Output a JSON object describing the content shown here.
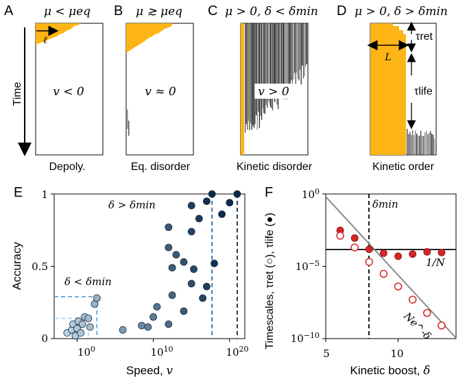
{
  "panel_letters": [
    "A",
    "B",
    "C",
    "D",
    "E",
    "F"
  ],
  "top_panels": [
    {
      "title": "μ < μeq",
      "center": "v < 0",
      "caption": "Depoly."
    },
    {
      "title": "μ ≳ μeq",
      "center": "v ≈ 0",
      "caption": "Eq. disorder"
    },
    {
      "title": "μ > 0, δ < δmin",
      "center": "v > 0",
      "caption": "Kinetic disorder"
    },
    {
      "title": "μ > 0, δ > δmin",
      "center": "",
      "caption": "Kinetic order"
    }
  ],
  "time_axis_label": "Time",
  "annotations": {
    "ell": "ℓ",
    "L": "L",
    "tau_ret": "τret",
    "tau_life": "τlife"
  },
  "colors": {
    "orange": "#FDB515",
    "dark_blue": "#0d2a47",
    "light_blue": "#b9dcf3",
    "red": "#d62728"
  },
  "chart_data": [
    {
      "type": "scatter",
      "title": "",
      "xlabel": "Speed, v",
      "ylabel": "Accuracy",
      "xscale": "log",
      "xlim": [
        0.001,
        1e+22
      ],
      "ylim": [
        0,
        1
      ],
      "xticks": [
        "10^0",
        "10^10",
        "10^20"
      ],
      "yticks": [
        "0",
        "0.5",
        "1"
      ],
      "annotations": [
        "δ > δmin",
        "δ < δmin"
      ],
      "points": [
        {
          "x": 0.05,
          "y": 0.04
        },
        {
          "x": 0.2,
          "y": 0.06
        },
        {
          "x": 0.3,
          "y": 0.1
        },
        {
          "x": 0.6,
          "y": 0.02
        },
        {
          "x": 1,
          "y": 0.07
        },
        {
          "x": 1.5,
          "y": 0.12
        },
        {
          "x": 3,
          "y": 0.04
        },
        {
          "x": 5,
          "y": 0.1
        },
        {
          "x": 10,
          "y": 0.15
        },
        {
          "x": 30,
          "y": 0.14
        },
        {
          "x": 50,
          "y": 0.08
        },
        {
          "x": 200,
          "y": 0.24
        },
        {
          "x": 400,
          "y": 0.28
        },
        {
          "x": 1000000.0,
          "y": 0.06
        },
        {
          "x": 300000000.0,
          "y": 0.09
        },
        {
          "x": 2000000000.0,
          "y": 0.08
        },
        {
          "x": 10000000000.0,
          "y": 0.15
        },
        {
          "x": 30000000000.0,
          "y": 0.22
        },
        {
          "x": 1000000000000.0,
          "y": 0.1
        },
        {
          "x": 3000000000000.0,
          "y": 0.3
        },
        {
          "x": 100000000000000.0,
          "y": 0.19
        },
        {
          "x": 1000000000000000.0,
          "y": 0.38
        },
        {
          "x": 2000000000000000.0,
          "y": 0.48
        },
        {
          "x": 3e+16,
          "y": 0.28
        },
        {
          "x": 1e+17,
          "y": 0.36
        },
        {
          "x": 100000000000000.0,
          "y": 0.53
        },
        {
          "x": 1000000000000.0,
          "y": 0.63
        },
        {
          "x": 1000000000000000.0,
          "y": 0.74
        },
        {
          "x": 1e+16,
          "y": 0.83
        },
        {
          "x": 1e+17,
          "y": 0.95
        },
        {
          "x": 5e+17,
          "y": 1.0
        },
        {
          "x": 1000000000000000.0,
          "y": 0.92
        },
        {
          "x": 1e+19,
          "y": 0.86
        },
        {
          "x": 1e+20,
          "y": 0.94
        },
        {
          "x": 1e+21,
          "y": 1.0
        },
        {
          "x": 1e+18,
          "y": 0.52
        },
        {
          "x": 3000000000000.0,
          "y": 0.49
        },
        {
          "x": 10000000000000.0,
          "y": 0.58
        },
        {
          "x": 1000000000000.0,
          "y": 0.77
        }
      ],
      "guides": [
        {
          "x": 5e+17,
          "y": 1.0
        },
        {
          "x": 1e+21,
          "y": 1.0
        }
      ]
    },
    {
      "type": "scatter",
      "title": "",
      "xlabel": "Kinetic boost, δ",
      "ylabel": "Timescales, τret (○), τlife (●)",
      "yscale": "log",
      "xlim": [
        5,
        14
      ],
      "ylim": [
        1e-10,
        1
      ],
      "xticks": [
        "5",
        "10"
      ],
      "yticks": [
        "10^0",
        "10^-5",
        "10^-10"
      ],
      "annotations": [
        "δmin",
        "1/N",
        "Ne^-δ"
      ],
      "series": [
        {
          "name": "τlife",
          "marker": "filled",
          "x": [
            6,
            7,
            8,
            9,
            10,
            11,
            12,
            13
          ],
          "y": [
            0.003,
            0.0009,
            0.00015,
            8e-05,
            5e-05,
            7e-05,
            0.0001,
            9e-05
          ]
        },
        {
          "name": "τret",
          "marker": "open",
          "x": [
            6,
            7,
            8,
            9,
            10,
            11,
            12,
            13
          ],
          "y": [
            0.0013,
            0.0002,
            2e-05,
            3e-06,
            4e-07,
            5e-08,
            6e-09,
            8e-10
          ]
        }
      ],
      "h_line_y": 5e-05,
      "v_line_x": 7.8
    }
  ]
}
